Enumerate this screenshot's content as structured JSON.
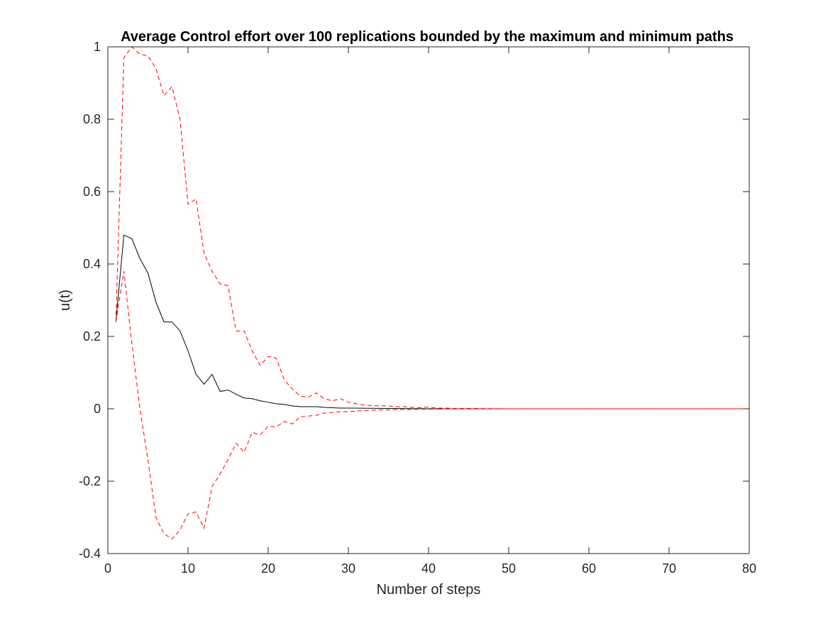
{
  "chart_data": {
    "type": "line",
    "title": "Average Control effort over 100 replications bounded by the maximum and minimum paths",
    "xlabel": "Number of steps",
    "ylabel": "u(t)",
    "xlim": [
      0,
      80
    ],
    "ylim": [
      -0.4,
      1
    ],
    "xticks": [
      0,
      10,
      20,
      30,
      40,
      50,
      60,
      70,
      80
    ],
    "yticks": [
      -0.4,
      -0.2,
      0,
      0.2,
      0.4,
      0.6,
      0.8,
      1
    ],
    "xtick_labels": [
      "0",
      "10",
      "20",
      "30",
      "40",
      "50",
      "60",
      "70",
      "80"
    ],
    "ytick_labels": [
      "-0.4",
      "-0.2",
      "0",
      "0.2",
      "0.4",
      "0.6",
      "0.8",
      "1"
    ],
    "grid": false,
    "legend": null,
    "series": [
      {
        "name": "average",
        "color": "#000000",
        "style": "solid",
        "x": [
          1,
          2,
          3,
          4,
          5,
          6,
          7,
          8,
          9,
          10,
          11,
          12,
          13,
          14,
          15,
          16,
          17,
          18,
          19,
          20,
          21,
          22,
          23,
          24,
          25,
          26,
          27,
          28,
          29,
          30,
          35,
          40,
          45,
          50,
          55,
          60,
          65,
          70,
          75,
          80
        ],
        "y": [
          0.24,
          0.48,
          0.47,
          0.415,
          0.375,
          0.295,
          0.24,
          0.24,
          0.215,
          0.16,
          0.095,
          0.068,
          0.095,
          0.048,
          0.052,
          0.04,
          0.03,
          0.028,
          0.022,
          0.018,
          0.014,
          0.012,
          0.008,
          0.006,
          0.006,
          0.006,
          0.004,
          0.003,
          0.002,
          0.002,
          0.001,
          0.0,
          0,
          0,
          0,
          0,
          0,
          0,
          0,
          0
        ]
      },
      {
        "name": "maximum",
        "color": "#ff0000",
        "style": "dashed",
        "x": [
          1,
          2,
          3,
          4,
          5,
          6,
          7,
          8,
          9,
          10,
          11,
          12,
          13,
          14,
          15,
          16,
          17,
          18,
          19,
          20,
          21,
          22,
          23,
          24,
          25,
          26,
          27,
          28,
          29,
          30,
          31,
          32,
          33,
          34,
          35,
          36,
          37,
          38,
          39,
          40,
          41,
          42,
          43,
          45,
          50,
          55,
          60,
          65,
          70,
          75,
          80
        ],
        "y": [
          0.24,
          0.97,
          1.0,
          0.98,
          0.975,
          0.94,
          0.865,
          0.89,
          0.8,
          0.565,
          0.58,
          0.43,
          0.38,
          0.345,
          0.34,
          0.215,
          0.215,
          0.16,
          0.12,
          0.145,
          0.14,
          0.08,
          0.055,
          0.035,
          0.032,
          0.044,
          0.028,
          0.022,
          0.028,
          0.018,
          0.014,
          0.01,
          0.009,
          0.008,
          0.008,
          0.006,
          0.006,
          0.004,
          0.003,
          0.005,
          0.002,
          0.002,
          0.001,
          0.001,
          0.0,
          0,
          0,
          0,
          0,
          0,
          0
        ]
      },
      {
        "name": "minimum",
        "color": "#ff0000",
        "style": "dashed",
        "x": [
          1,
          2,
          3,
          4,
          5,
          6,
          7,
          8,
          9,
          10,
          11,
          12,
          13,
          14,
          15,
          16,
          17,
          18,
          19,
          20,
          21,
          22,
          23,
          24,
          25,
          26,
          27,
          28,
          29,
          30,
          31,
          32,
          33,
          34,
          35,
          36,
          37,
          38,
          39,
          40,
          41,
          42,
          45,
          50,
          55,
          60,
          65,
          70,
          75,
          80
        ],
        "y": [
          0.24,
          0.38,
          0.18,
          0.0,
          -0.14,
          -0.3,
          -0.345,
          -0.36,
          -0.335,
          -0.29,
          -0.285,
          -0.33,
          -0.215,
          -0.18,
          -0.14,
          -0.095,
          -0.12,
          -0.065,
          -0.072,
          -0.048,
          -0.05,
          -0.035,
          -0.042,
          -0.022,
          -0.02,
          -0.018,
          -0.012,
          -0.01,
          -0.008,
          -0.008,
          -0.006,
          -0.005,
          -0.004,
          -0.003,
          -0.003,
          -0.002,
          -0.002,
          -0.002,
          -0.001,
          -0.001,
          -0.001,
          0,
          0,
          0,
          0,
          0,
          0,
          0,
          0,
          0
        ]
      }
    ]
  }
}
